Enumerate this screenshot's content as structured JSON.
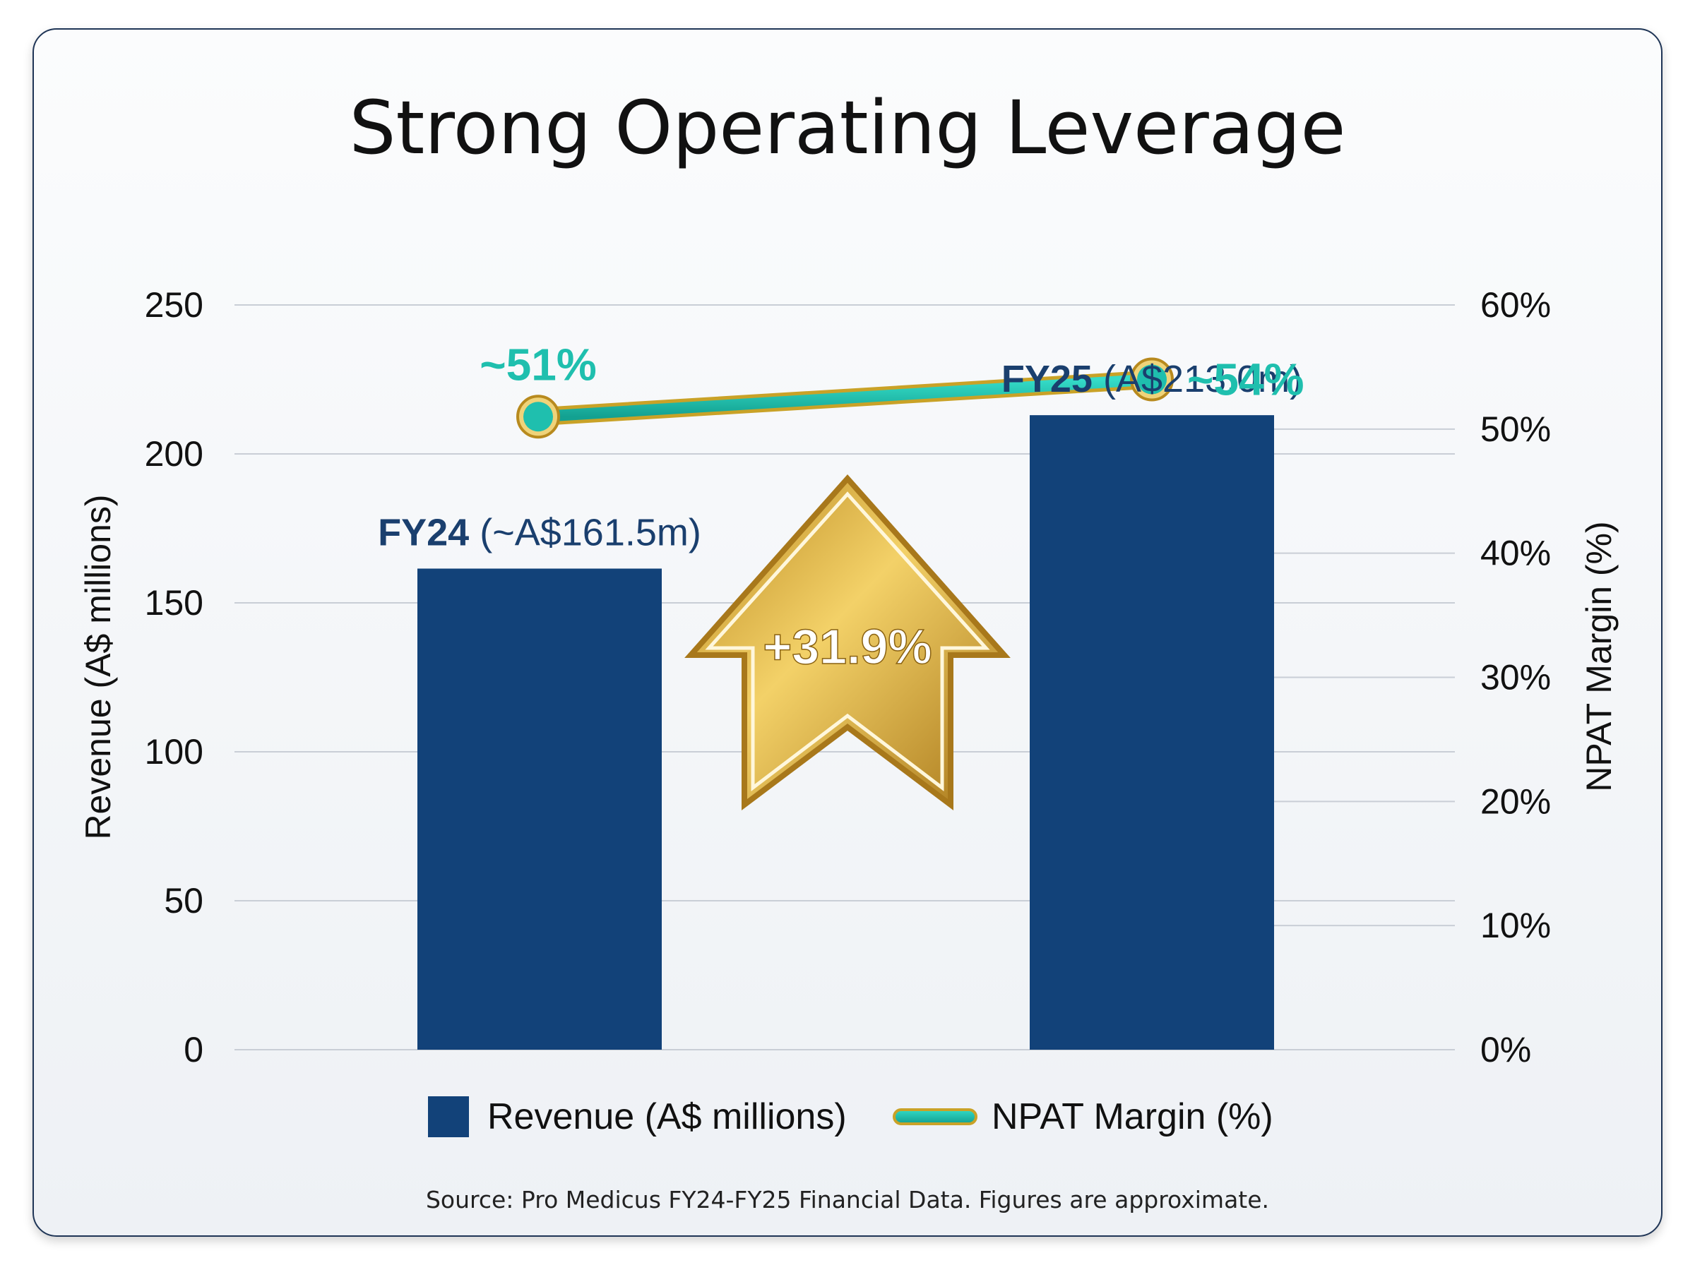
{
  "chart_data": {
    "type": "bar",
    "title": "Strong Operating Leverage",
    "categories": [
      "FY24",
      "FY25"
    ],
    "series": [
      {
        "name": "Revenue (A$ millions)",
        "type": "bar",
        "axis": "left",
        "values": [
          161.5,
          213.0
        ]
      },
      {
        "name": "NPAT Margin (%)",
        "type": "line",
        "axis": "right",
        "values": [
          51,
          54
        ]
      }
    ],
    "bar_labels": [
      {
        "bold": "FY24",
        "rest": " (~A$161.5m)"
      },
      {
        "bold": "FY25",
        "rest": " (A$213.0m)"
      }
    ],
    "line_labels": [
      "~51%",
      "~54%"
    ],
    "growth_label": "+31.9%",
    "ylabel_left": "Revenue (A$ millions)",
    "ylabel_right": "NPAT Margin (%)",
    "ylim_left": [
      0,
      250
    ],
    "ylim_right": [
      0,
      60
    ],
    "yticks_left": [
      "0",
      "50",
      "100",
      "150",
      "200",
      "250"
    ],
    "yticks_right": [
      "0%",
      "10%",
      "20%",
      "30%",
      "40%",
      "50%",
      "60%"
    ],
    "grid": true,
    "legend_position": "bottom",
    "colors": {
      "bar": "#124279",
      "line": "#1fbfae",
      "gold": "#c9a227",
      "label": "#1a3f6e"
    }
  },
  "source": "Source: Pro Medicus FY24-FY25 Financial Data. Figures are approximate."
}
